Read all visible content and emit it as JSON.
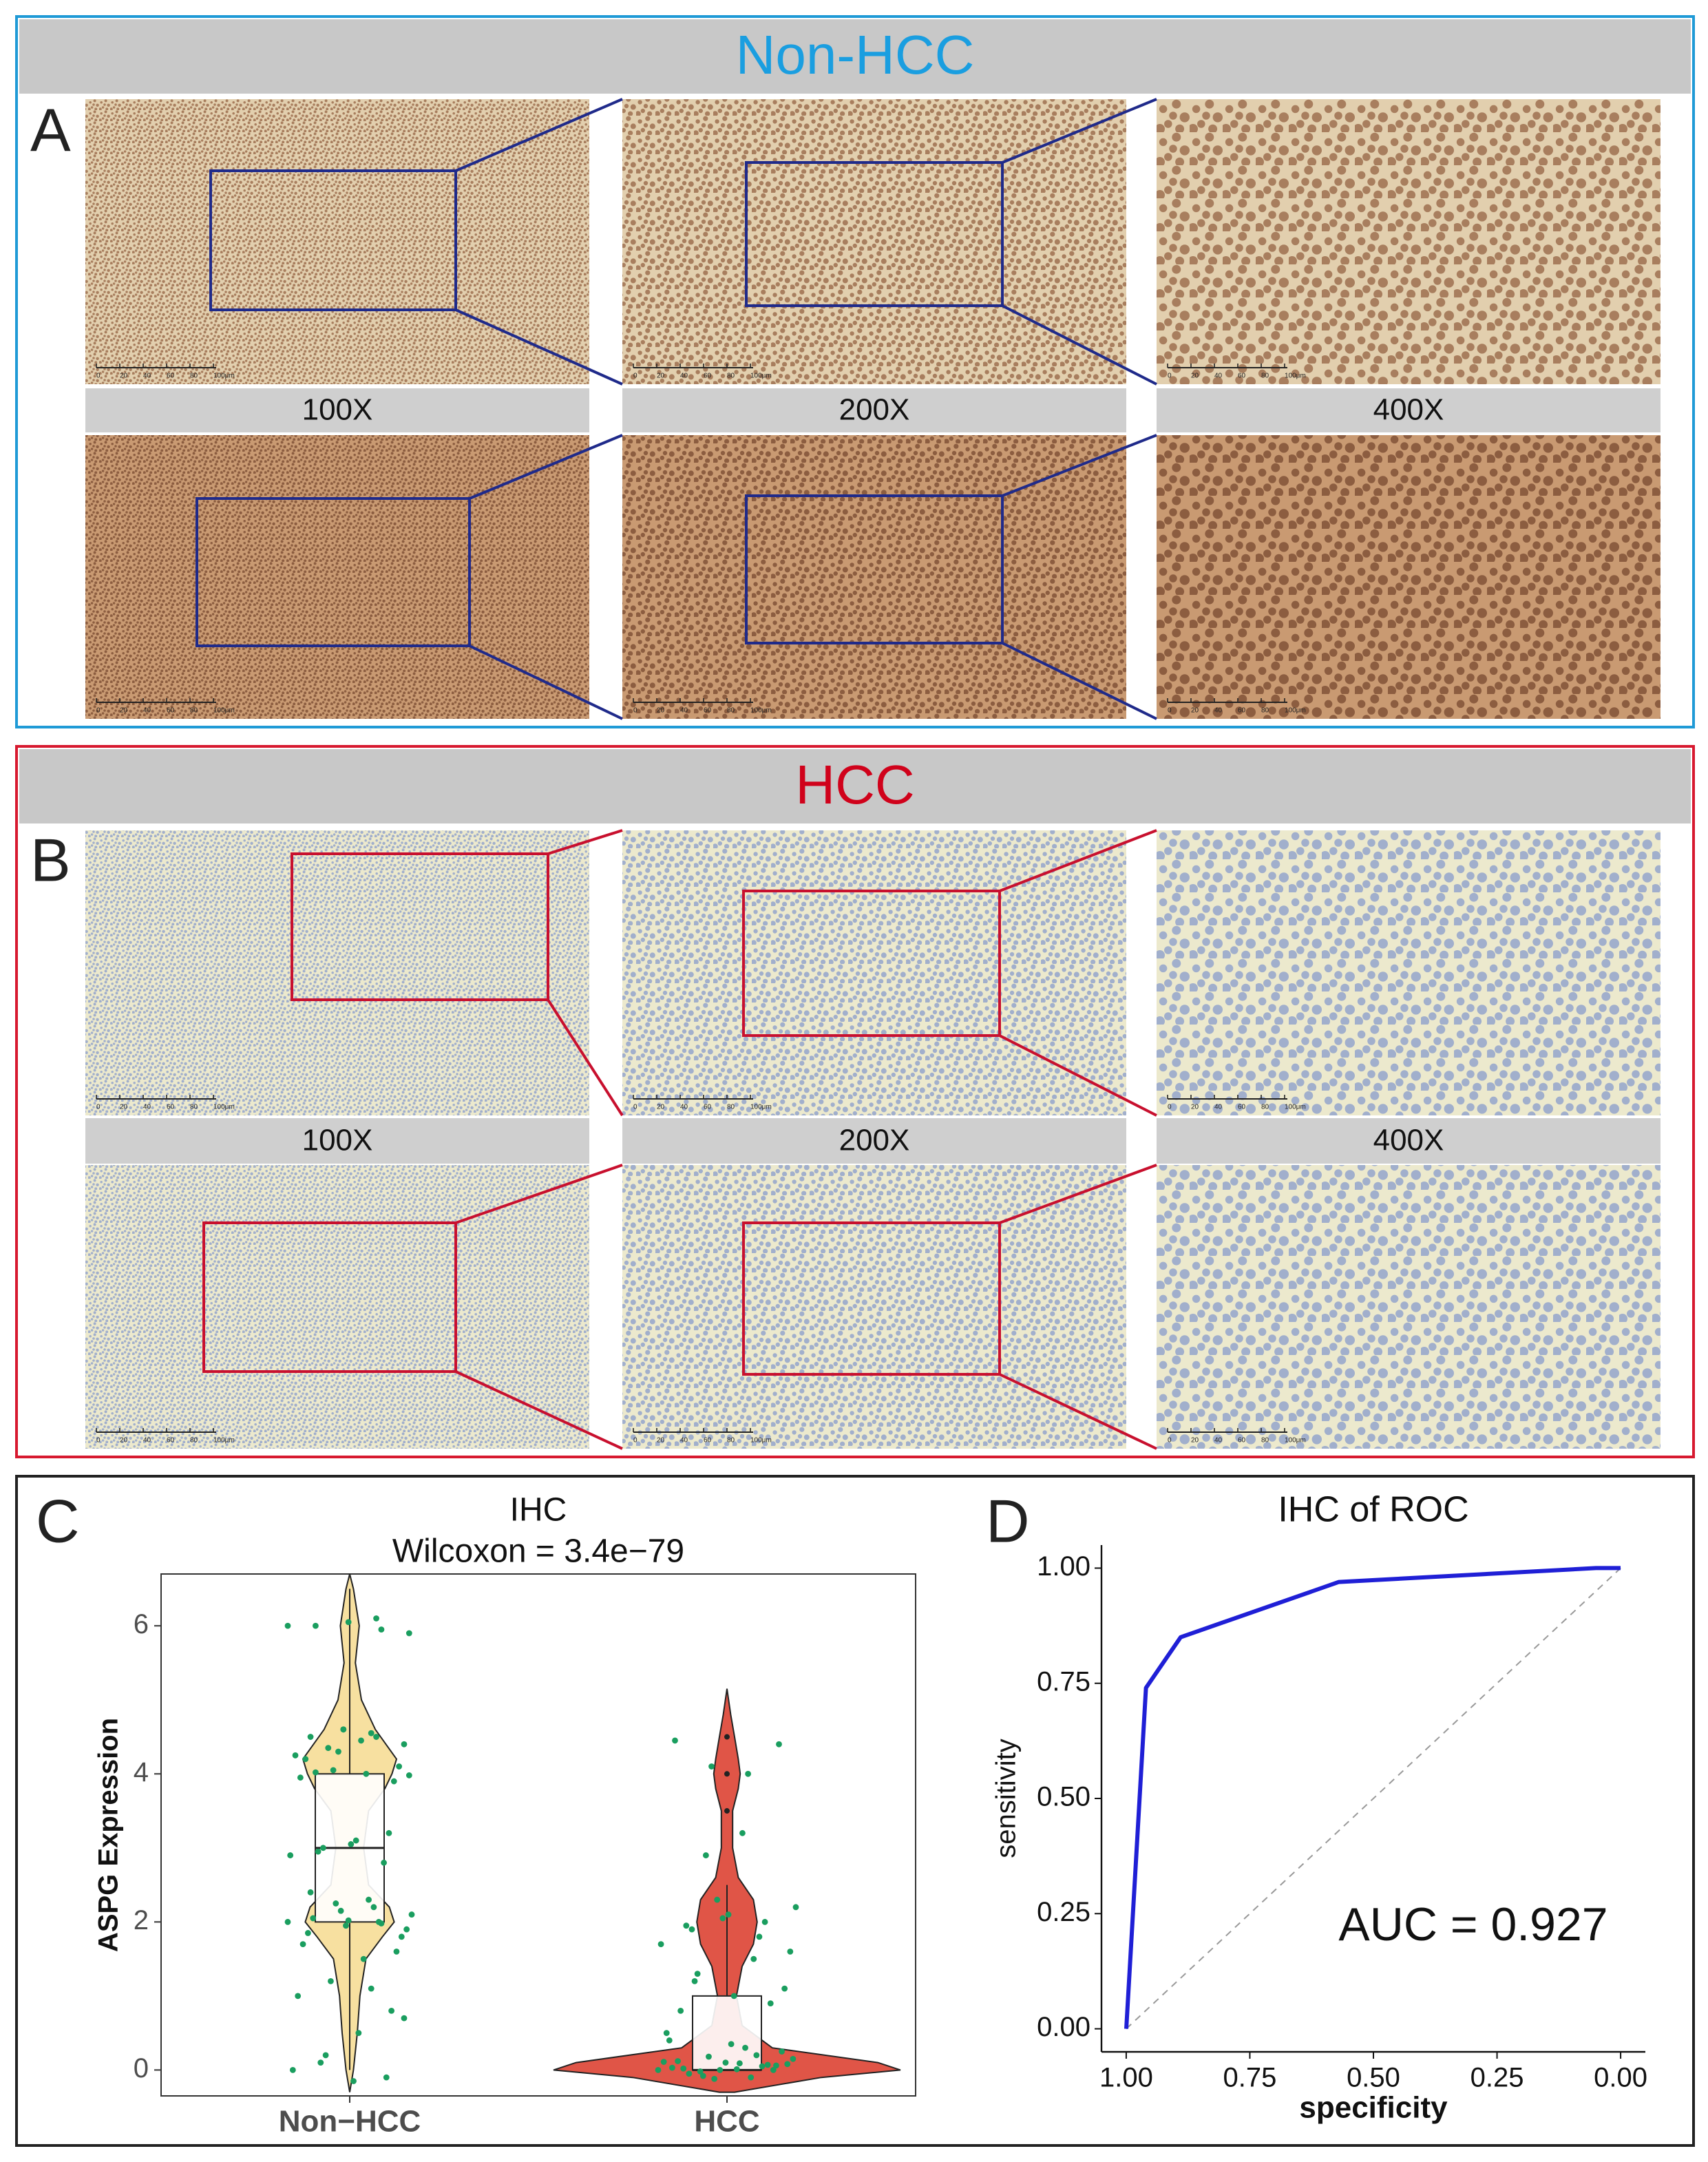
{
  "panel_a": {
    "letter": "A",
    "title": "Non-HCC",
    "magnifications": [
      "100X",
      "200X",
      "400X"
    ]
  },
  "panel_b": {
    "letter": "B",
    "title": "HCC",
    "magnifications": [
      "100X",
      "200X",
      "400X"
    ]
  },
  "scale_bar": [
    "0",
    "20",
    "40",
    "60",
    "80",
    "100μm"
  ],
  "chart_data": [
    {
      "type": "violin",
      "panel_label": "C",
      "title": "IHC",
      "subtitle": "Wilcoxon = 3.4e−79",
      "y_label": "ASPG Expression",
      "categories": [
        "Non−HCC",
        "HCC"
      ],
      "ylim": [
        -0.35,
        6.7
      ],
      "yticks": [
        0,
        2,
        4,
        6
      ],
      "point_color": "#1a9e5f",
      "groups": [
        {
          "color": "#f7e0a0",
          "box": {
            "whisker_low": 0,
            "q1": 2,
            "median": 3,
            "q3": 4,
            "whisker_high": 6.5
          },
          "outliers": [],
          "density_y": [
            -0.3,
            0,
            0.5,
            1,
            1.5,
            1.8,
            2,
            2.2,
            2.5,
            3,
            3.5,
            3.8,
            4,
            4.2,
            4.6,
            5,
            5.5,
            6,
            6.5,
            6.7
          ],
          "density_width": [
            0,
            0.01,
            0.02,
            0.027,
            0.043,
            0.087,
            0.118,
            0.105,
            0.05,
            0.037,
            0.05,
            0.093,
            0.112,
            0.124,
            0.068,
            0.031,
            0.015,
            0.025,
            0.01,
            0
          ],
          "points": [
            6,
            5.95,
            6.05,
            6,
            5.9,
            6.1,
            4.6,
            4.5,
            4.4,
            4.55,
            4.3,
            4.2,
            4.1,
            4.0,
            4.05,
            3.95,
            3.9,
            4.45,
            4.35,
            4.25,
            3.2,
            3.1,
            3.0,
            2.9,
            2.8,
            3.05,
            2.95,
            2.1,
            2.0,
            1.95,
            2.05,
            1.9,
            2.2,
            2.15,
            1.85,
            1.8,
            2.3,
            2.25,
            1.7,
            1.6,
            1.5,
            1.2,
            1.0,
            0.8,
            0.5,
            0.2,
            0,
            -0.1,
            -0.15,
            0.1,
            2.0,
            1.98,
            2.02,
            4.02,
            3.98,
            4.5,
            4.6,
            2.4,
            0.7,
            1.1
          ]
        },
        {
          "color": "#e05547",
          "box": {
            "whisker_low": 0,
            "q1": 0,
            "median": 0,
            "q3": 1,
            "whisker_high": 2.5
          },
          "outliers": [
            3.5,
            4,
            4.5
          ],
          "density_y": [
            -0.3,
            -0.1,
            0,
            0.1,
            0.3,
            0.6,
            1,
            1.4,
            1.7,
            2,
            2.3,
            2.6,
            3,
            3.5,
            3.8,
            4,
            4.2,
            4.5,
            4.8,
            5.15
          ],
          "density_width": [
            0.02,
            0.25,
            0.46,
            0.4,
            0.12,
            0.04,
            0.025,
            0.04,
            0.07,
            0.08,
            0.07,
            0.03,
            0.015,
            0.015,
            0.03,
            0.035,
            0.03,
            0.02,
            0.01,
            0
          ],
          "points": [
            0,
            0.05,
            0.1,
            -0.05,
            0.15,
            0.2,
            0,
            0.02,
            0.08,
            -0.1,
            -0.12,
            0.12,
            0.25,
            0.3,
            0.18,
            0.03,
            0.06,
            0.09,
            -0.08,
            0.5,
            0.9,
            1.0,
            1.3,
            1.7,
            2.0,
            2.1,
            1.9,
            2.2,
            1.8,
            2.05,
            1.95,
            1.6,
            1.5,
            2.3,
            0.8,
            1.1,
            4.0,
            4.1,
            4.45,
            4.4,
            3.2,
            2.9,
            0.4,
            0.0,
            0.01,
            -0.02,
            0.11,
            0.07,
            0.35,
            1.2
          ]
        }
      ]
    },
    {
      "type": "line",
      "panel_label": "D",
      "title": "IHC of ROC",
      "x_label": "specificity",
      "y_label": "sensitivity",
      "annotation": "AUC = 0.927",
      "color": "#1f1fd6",
      "xlim": [
        1.05,
        -0.05
      ],
      "ylim": [
        -0.05,
        1.05
      ],
      "xticks": [
        {
          "value": 1,
          "label": "1.00"
        },
        {
          "value": 0.75,
          "label": "0.75"
        },
        {
          "value": 0.5,
          "label": "0.50"
        },
        {
          "value": 0.25,
          "label": "0.25"
        },
        {
          "value": 0,
          "label": "0.00"
        }
      ],
      "yticks": [
        {
          "value": 0,
          "label": "0.00"
        },
        {
          "value": 0.25,
          "label": "0.25"
        },
        {
          "value": 0.5,
          "label": "0.50"
        },
        {
          "value": 0.75,
          "label": "0.75"
        },
        {
          "value": 1,
          "label": "1.00"
        }
      ],
      "x": [
        1,
        0.96,
        0.89,
        0.57,
        0.05,
        0
      ],
      "values": [
        0,
        0.74,
        0.85,
        0.97,
        1,
        1
      ]
    }
  ]
}
